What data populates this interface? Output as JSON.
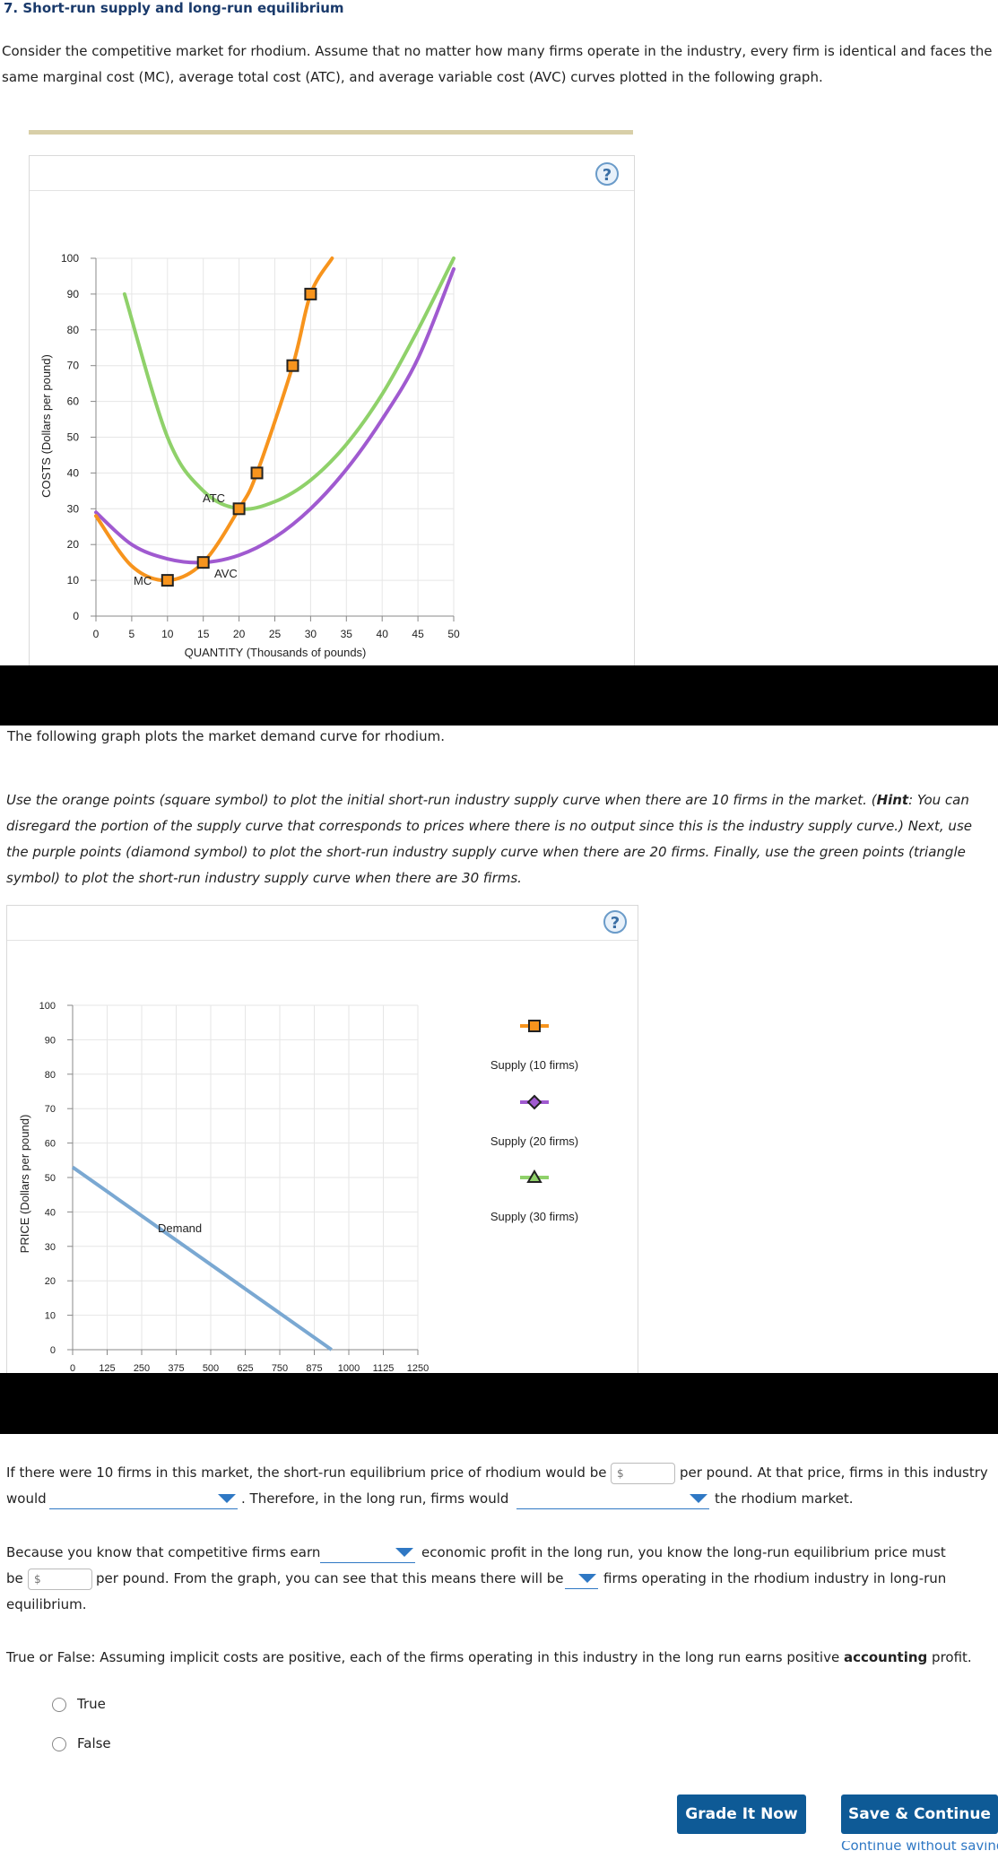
{
  "question_title": "7. Short-run supply and long-run equilibrium",
  "intro_text": "Consider the competitive market for rhodium. Assume that no matter how many firms operate in the industry, every firm is identical and faces the same marginal cost (MC), average total cost (ATC), and average variable cost (AVC) curves plotted in the following graph.",
  "cost_graph": {
    "help_label": "?",
    "ylabel": "COSTS (Dollars per pound)",
    "xlabel": "QUANTITY (Thousands of pounds)",
    "y_ticks": [
      "0",
      "10",
      "20",
      "30",
      "40",
      "50",
      "60",
      "70",
      "80",
      "90",
      "100"
    ],
    "x_ticks": [
      "0",
      "5",
      "10",
      "15",
      "20",
      "25",
      "30",
      "35",
      "40",
      "45",
      "50"
    ],
    "curve_labels": {
      "atc": "ATC",
      "avc": "AVC",
      "mc": "MC"
    },
    "colors": {
      "mc": "#f7941d",
      "atc": "#8fd16a",
      "avc": "#a05ad0",
      "marker_fill": "#f7941d"
    }
  },
  "chart_data": [
    {
      "type": "line",
      "title": "",
      "xlabel": "QUANTITY (Thousands of pounds)",
      "ylabel": "COSTS (Dollars per pound)",
      "xlim": [
        0,
        50
      ],
      "ylim": [
        0,
        100
      ],
      "series": [
        {
          "name": "MC",
          "x": [
            0,
            5,
            10,
            15,
            20,
            22.5,
            27.5,
            30,
            33
          ],
          "y": [
            28,
            14,
            10,
            15,
            30,
            40,
            70,
            90,
            100
          ],
          "markers": [
            {
              "x": 10,
              "y": 10
            },
            {
              "x": 15,
              "y": 15
            },
            {
              "x": 20,
              "y": 30
            },
            {
              "x": 22.5,
              "y": 40
            },
            {
              "x": 27.5,
              "y": 70
            },
            {
              "x": 30,
              "y": 90
            }
          ]
        },
        {
          "name": "ATC",
          "x": [
            4,
            10,
            15,
            20,
            25,
            30,
            35,
            40,
            45,
            50
          ],
          "y": [
            90,
            50,
            35,
            30,
            32,
            38,
            48,
            62,
            80,
            100
          ]
        },
        {
          "name": "AVC",
          "x": [
            0,
            5,
            10,
            15,
            20,
            25,
            30,
            35,
            40,
            45,
            50
          ],
          "y": [
            29,
            20,
            16,
            15,
            17,
            22,
            30,
            41,
            55,
            72,
            97
          ]
        }
      ]
    },
    {
      "type": "line",
      "title": "",
      "xlabel": "",
      "ylabel": "PRICE (Dollars per pound)",
      "xlim": [
        0,
        1250
      ],
      "ylim": [
        0,
        100
      ],
      "series": [
        {
          "name": "Demand",
          "x": [
            0,
            937.5
          ],
          "y": [
            53,
            0
          ]
        }
      ]
    }
  ],
  "demand_intro": "The following graph plots the market demand curve for rhodium.",
  "instructions": {
    "part1": "Use the orange points (square symbol) to plot the initial short-run industry supply curve when there are 10 firms in the market. (",
    "hint_label": "Hint",
    "part2": ": You can disregard the portion of the supply curve that corresponds to prices where there is no output since this is the industry supply curve.) Next, use the purple points (diamond symbol) to plot the short-run industry supply curve when there are 20 firms. Finally, use the green points (triangle symbol) to plot the short-run industry supply curve when there are 30 firms."
  },
  "market_graph": {
    "help_label": "?",
    "ylabel": "PRICE (Dollars per pound)",
    "y_ticks": [
      "0",
      "10",
      "20",
      "30",
      "40",
      "50",
      "60",
      "70",
      "80",
      "90",
      "100"
    ],
    "x_ticks": [
      "0",
      "125",
      "250",
      "375",
      "500",
      "625",
      "750",
      "875",
      "1000",
      "1125",
      "1250"
    ],
    "demand_label": "Demand",
    "legend": [
      {
        "label": "Supply (10 firms)",
        "color": "#f7941d",
        "symbol": "square"
      },
      {
        "label": "Supply (20 firms)",
        "color": "#a05ad0",
        "symbol": "diamond"
      },
      {
        "label": "Supply (30 firms)",
        "color": "#8fd16a",
        "symbol": "triangle"
      }
    ],
    "demand_color": "#7aa8d2"
  },
  "q1": {
    "text_a": "If there were 10 firms in this market, the short-run equilibrium price of rhodium would be",
    "price_placeholder": "$",
    "text_b": "per pound. At that price, firms in this industry",
    "text_c": "would",
    "text_d": ". Therefore, in the long run, firms would",
    "text_e": "the rhodium market."
  },
  "q2": {
    "text_a": "Because you know that competitive firms earn",
    "text_b": "economic profit in the long run, you know the long-run equilibrium price must",
    "text_c": "be",
    "price_placeholder": "$",
    "text_d": "per pound. From the graph, you can see that this means there will be",
    "text_e": "firms operating in the rhodium industry in long-run",
    "text_f": "equilibrium."
  },
  "q3": {
    "text_a": "True or False: Assuming implicit costs are positive, each of the firms operating in this industry in the long run earns positive",
    "text_bold": "accounting",
    "text_b": "profit.",
    "options": [
      "True",
      "False"
    ]
  },
  "buttons": {
    "grade": "Grade It Now",
    "save": "Save & Continue",
    "continue_link": "Continue without saving"
  }
}
